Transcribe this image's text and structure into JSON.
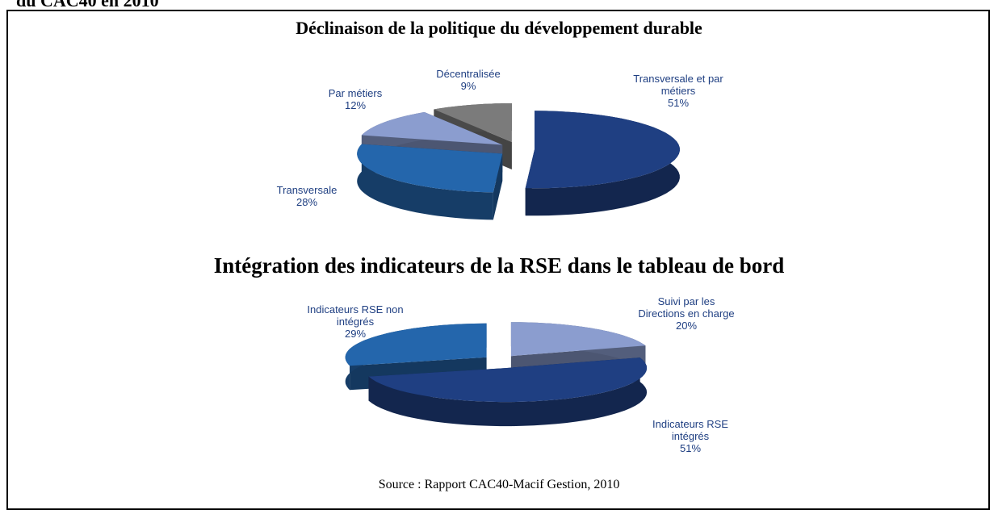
{
  "header": "du CAC40 en 2010",
  "chart_data": [
    {
      "type": "pie3d",
      "title": "Déclinaison de la politique du développement durable",
      "categories": [
        "Transversale et par métiers",
        "Transversale",
        "Par métiers",
        "Décentralisée"
      ],
      "values": [
        51,
        28,
        12,
        9
      ],
      "value_labels": [
        "51%",
        "28%",
        "12%",
        "9%"
      ],
      "colors": [
        "#1f3f82",
        "#2466ac",
        "#8b9dcf",
        "#7b7b7b"
      ]
    },
    {
      "type": "pie3d",
      "title": "Intégration des indicateurs de la RSE dans le tableau de bord",
      "categories": [
        "Suivi par les Directions en charge",
        "Indicateurs RSE intégrés",
        "Indicateurs RSE non intégrés"
      ],
      "values": [
        20,
        51,
        29
      ],
      "value_labels": [
        "20%",
        "51%",
        "29%"
      ],
      "colors": [
        "#8b9dcf",
        "#1f3f82",
        "#2466ac"
      ]
    }
  ],
  "source": "Source : Rapport CAC40-Macif Gestion, 2010"
}
